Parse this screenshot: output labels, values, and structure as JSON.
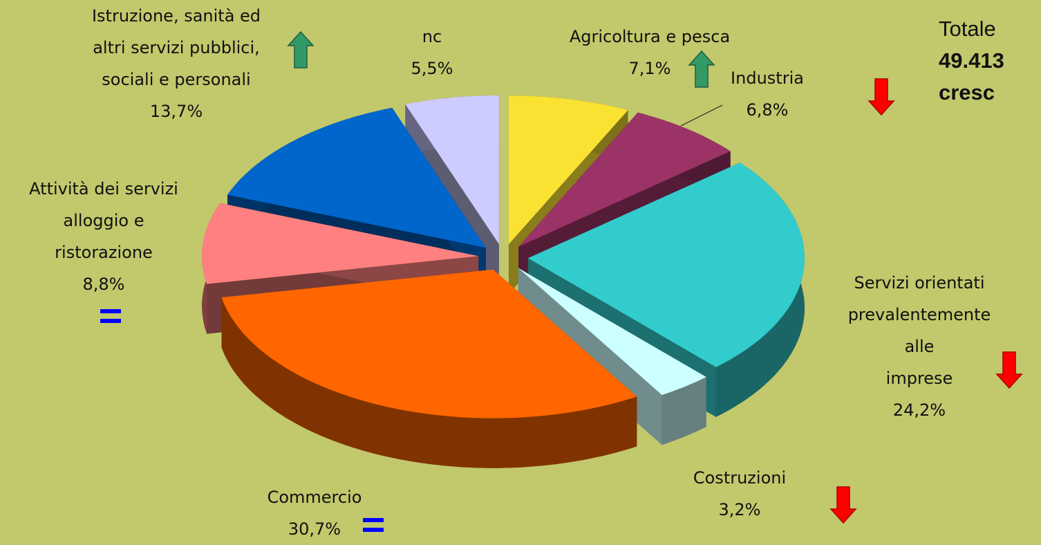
{
  "chart_data": {
    "type": "pie3d",
    "categories": [
      "Agricoltura e pesca",
      "Industria",
      "Servizi orientati\nprevalentemente alle\nimprese",
      "Costruzioni",
      "Commercio",
      "Attività dei servizi\nalloggio e\nristorazione",
      "Istruzione, sanità ed\naltri servizi pubblici,\nsociali e personali",
      "nc"
    ],
    "values": [
      7.1,
      6.8,
      24.2,
      3.2,
      30.7,
      8.8,
      13.7,
      5.5
    ],
    "value_labels": [
      "7,1%",
      "6,8%",
      "24,2%",
      "3,2%",
      "30,7%",
      "8,8%",
      "13,7%",
      "5,5%"
    ],
    "colors": [
      "#f9e231",
      "#9b3366",
      "#33cccc",
      "#ccffff",
      "#ff6600",
      "#ff8080",
      "#0066cc",
      "#ccccff"
    ],
    "trends": [
      "up",
      "down",
      "down",
      "down",
      "equal",
      "equal",
      "up",
      null
    ],
    "annotation": [
      "Totale",
      "49.413",
      "cresc"
    ]
  }
}
